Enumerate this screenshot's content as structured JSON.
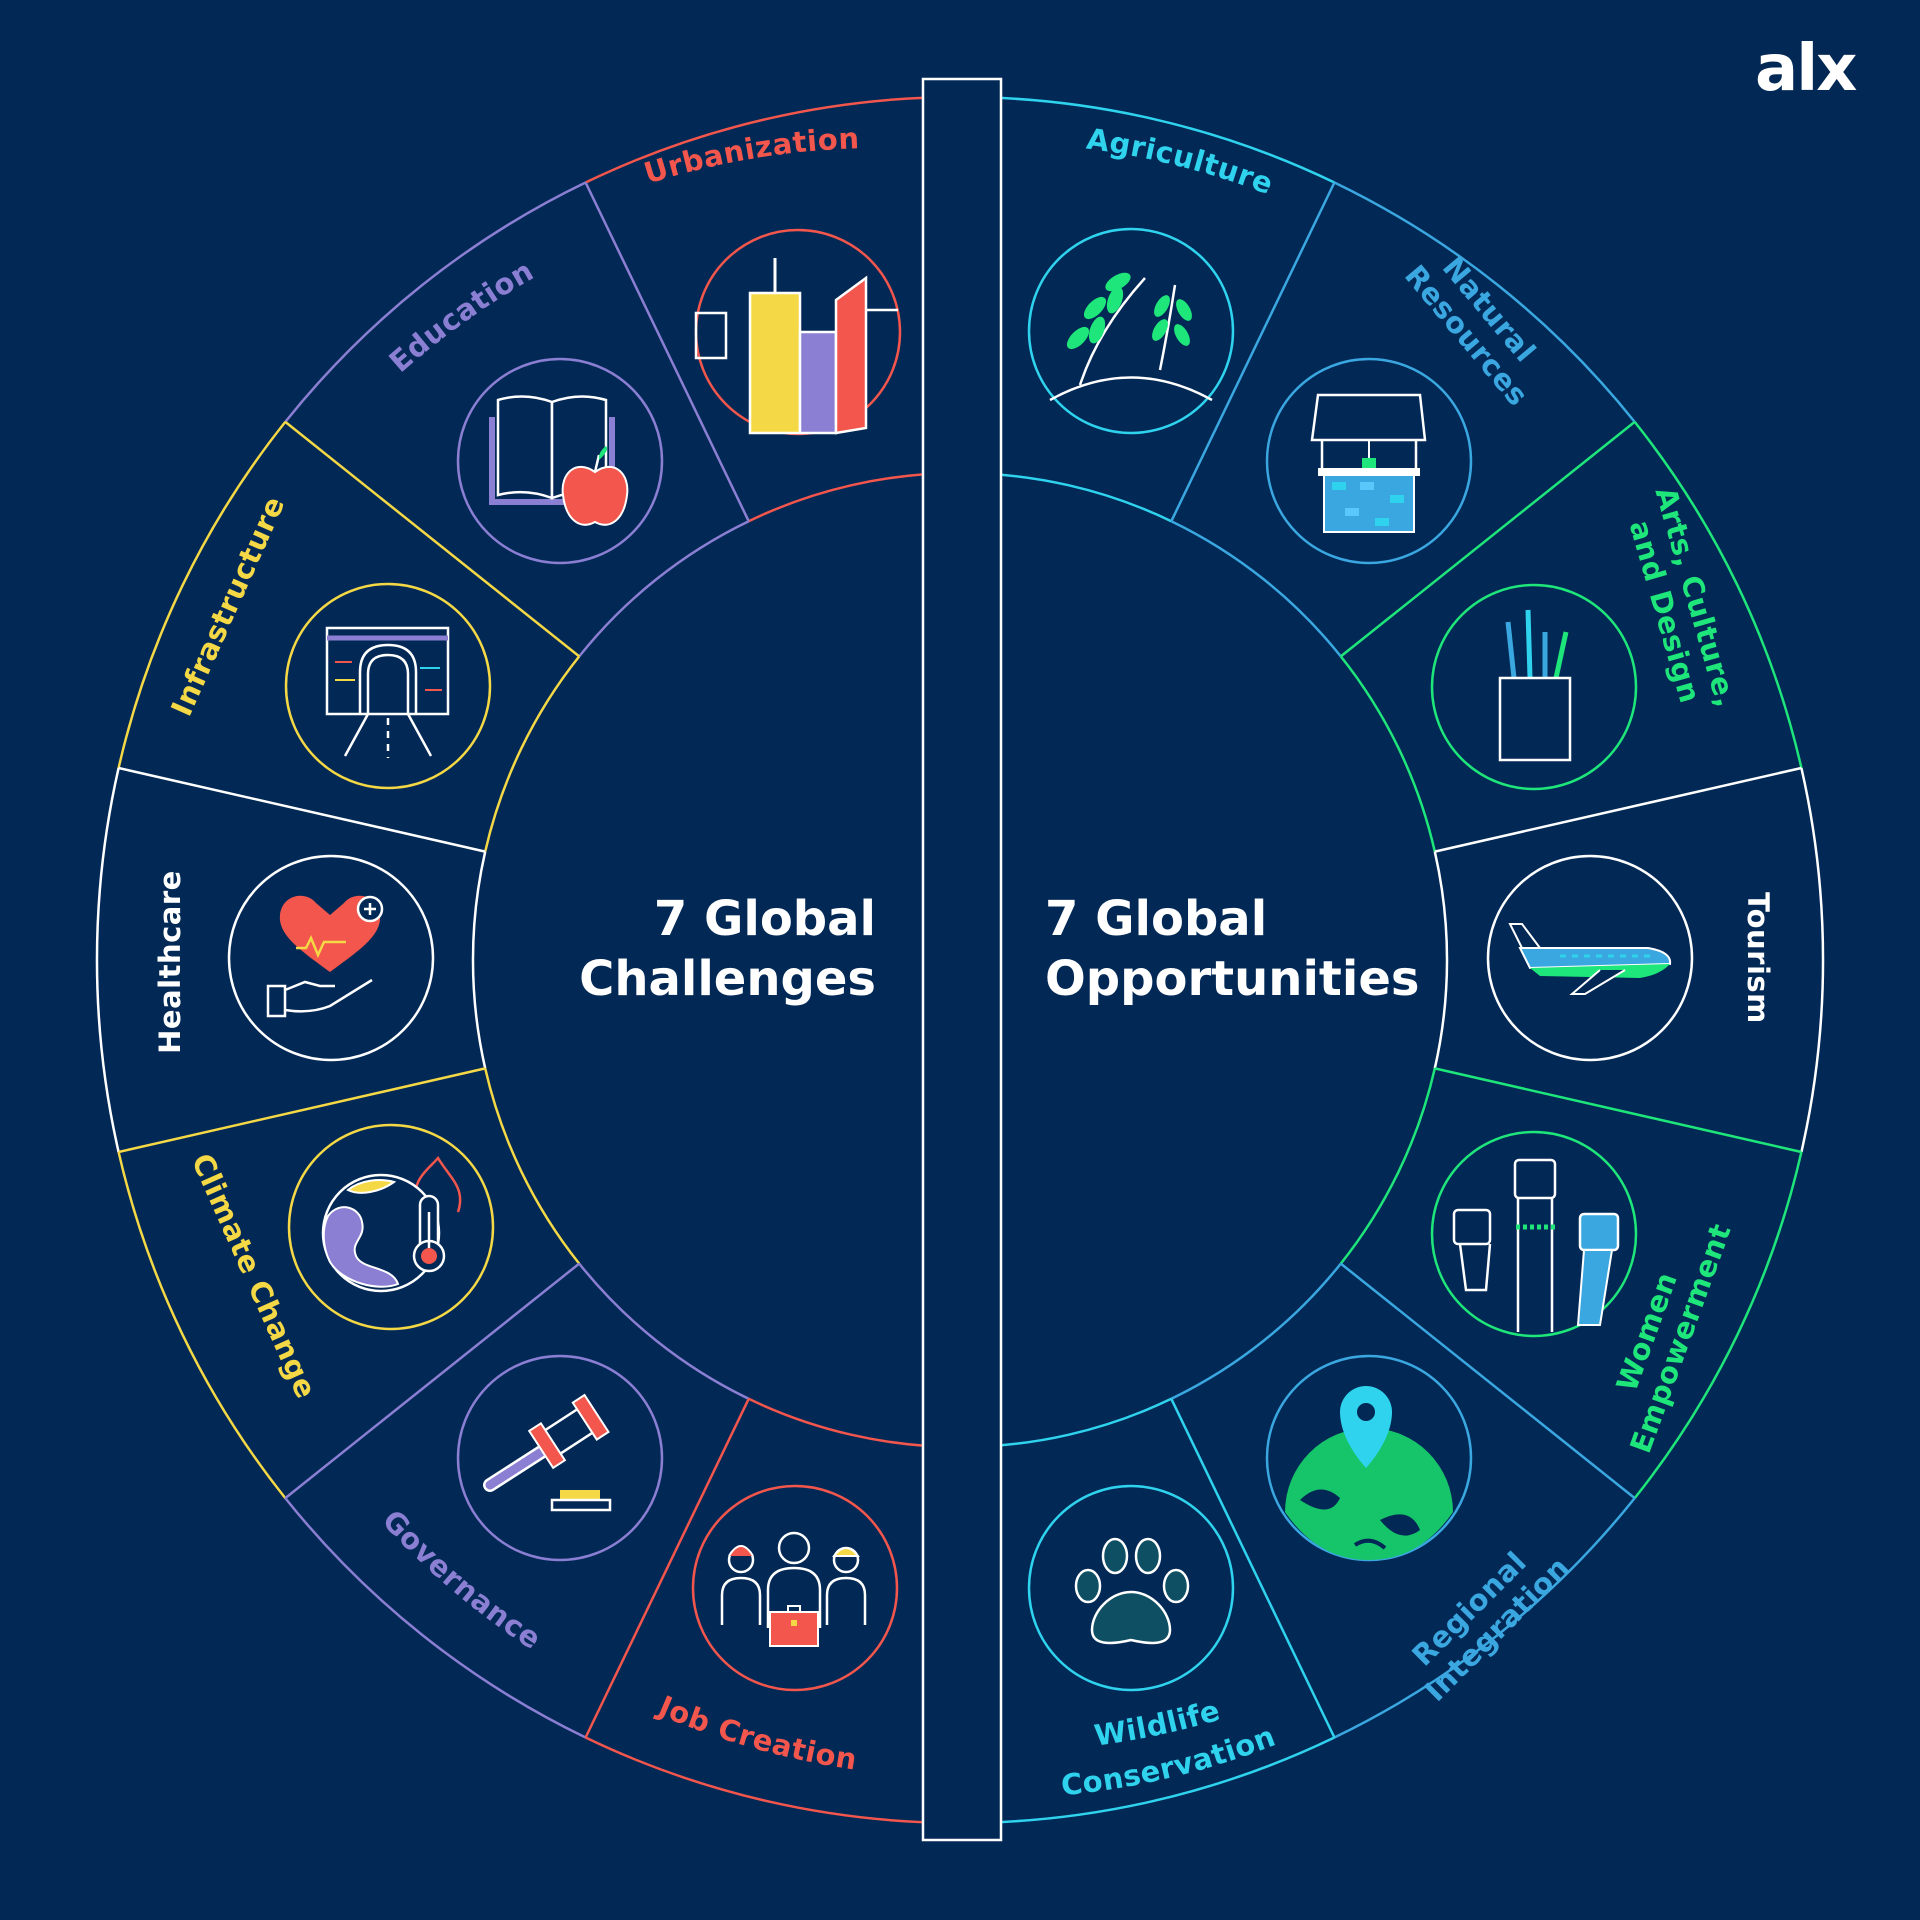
{
  "brand": {
    "logo_text": "alx"
  },
  "colors": {
    "background": "#022855",
    "red": "#f2564c",
    "purple": "#8b7fd3",
    "yellow": "#f5d845",
    "white": "#ffffff",
    "cyan": "#2fd3ee",
    "blue": "#3aa7e0",
    "green": "#1ee67a"
  },
  "challenges": {
    "title_line1": "7 Global",
    "title_line2": "Challenges",
    "items": [
      {
        "label": "Urbanization",
        "icon": "city-skyline-icon"
      },
      {
        "label": "Education",
        "icon": "book-apple-icon"
      },
      {
        "label": "Infrastructure",
        "icon": "tunnel-road-icon"
      },
      {
        "label": "Healthcare",
        "icon": "heart-hand-icon"
      },
      {
        "label": "Climate Change",
        "icon": "earth-thermometer-icon"
      },
      {
        "label": "Governance",
        "icon": "gavel-icon"
      },
      {
        "label": "Job Creation",
        "icon": "workers-briefcase-icon"
      }
    ]
  },
  "opportunities": {
    "title_line1": "7 Global",
    "title_line2": "Opportunities",
    "items": [
      {
        "label": "Agriculture",
        "icon": "plant-sprouts-icon"
      },
      {
        "label_line1": "Natural",
        "label_line2": "Resources",
        "icon": "water-well-icon"
      },
      {
        "label_line1": "Arts, Culture,",
        "label_line2": "and Design",
        "icon": "pencil-cup-icon"
      },
      {
        "label": "Tourism",
        "icon": "airplane-icon"
      },
      {
        "label_line1": "Women",
        "label_line2": "Empowerment",
        "icon": "raised-fists-icon"
      },
      {
        "label_line1": "Regional",
        "label_line2": "Integration",
        "icon": "globe-pin-icon"
      },
      {
        "label_line1": "Wildlife",
        "label_line2": "Conservation",
        "icon": "paw-print-icon"
      }
    ]
  }
}
